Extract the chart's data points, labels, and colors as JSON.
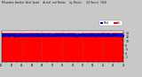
{
  "background_color": "#c8c8c8",
  "plot_bg_color": "#ffffff",
  "n_points": 1440,
  "ylim": [
    0,
    15
  ],
  "yticks": [
    2,
    4,
    6,
    8,
    10,
    12,
    14
  ],
  "actual_color": "#ff0000",
  "median_color": "#0000cc",
  "seed": 99,
  "dashed_positions": [
    240,
    480,
    720,
    960,
    1200
  ],
  "legend_blue_label": "Med",
  "legend_red_label": "Act"
}
